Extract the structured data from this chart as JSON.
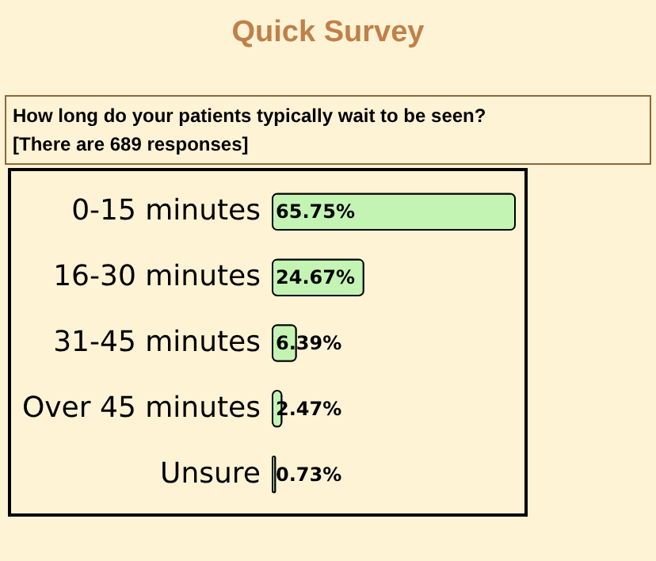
{
  "chart_data": {
    "type": "bar",
    "orientation": "horizontal",
    "title": "Quick Survey",
    "subtitle": "How long do your patients typically wait to be seen?",
    "annotations": [
      "[There are 689 responses]"
    ],
    "categories": [
      "0-15 minutes",
      "16-30 minutes",
      "31-45 minutes",
      "Over 45 minutes",
      "Unsure"
    ],
    "values": [
      65.75,
      24.67,
      6.39,
      2.47,
      0.73
    ],
    "value_labels": [
      "65.75%",
      "24.67%",
      "6.39%",
      "2.47%",
      "0.73%"
    ],
    "color": "#c4f4b4"
  }
}
